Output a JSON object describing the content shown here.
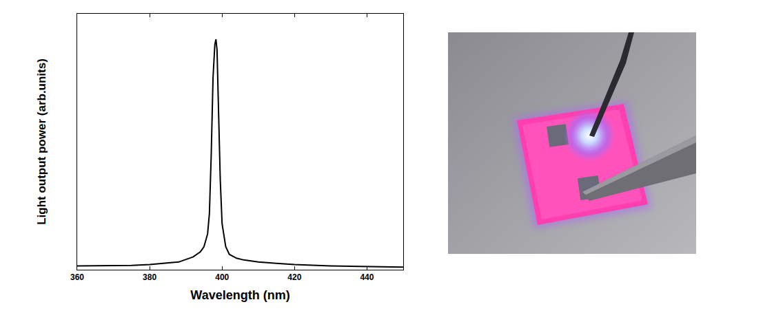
{
  "chart_data": {
    "type": "line",
    "x": [
      360,
      365,
      370,
      375,
      380,
      385,
      388,
      390,
      392,
      394,
      395,
      396,
      396.5,
      397,
      397.5,
      398,
      398.3,
      398.6,
      399,
      399.5,
      400,
      401,
      402,
      404,
      406,
      410,
      415,
      420,
      430,
      440,
      450
    ],
    "values": [
      0.015,
      0.015,
      0.016,
      0.017,
      0.02,
      0.025,
      0.03,
      0.04,
      0.05,
      0.07,
      0.09,
      0.14,
      0.22,
      0.45,
      0.75,
      0.88,
      0.9,
      0.86,
      0.65,
      0.35,
      0.18,
      0.09,
      0.06,
      0.045,
      0.038,
      0.03,
      0.025,
      0.02,
      0.015,
      0.012,
      0.01
    ],
    "color": "#000000",
    "xlabel": "Wavelength (nm)",
    "ylabel": "Light output power (arb.units)",
    "xlim": [
      360,
      450
    ],
    "xticks": [
      360,
      380,
      400,
      420,
      440
    ],
    "ylim": [
      0,
      1
    ],
    "tick_labels": "x",
    "grid": false
  }
}
